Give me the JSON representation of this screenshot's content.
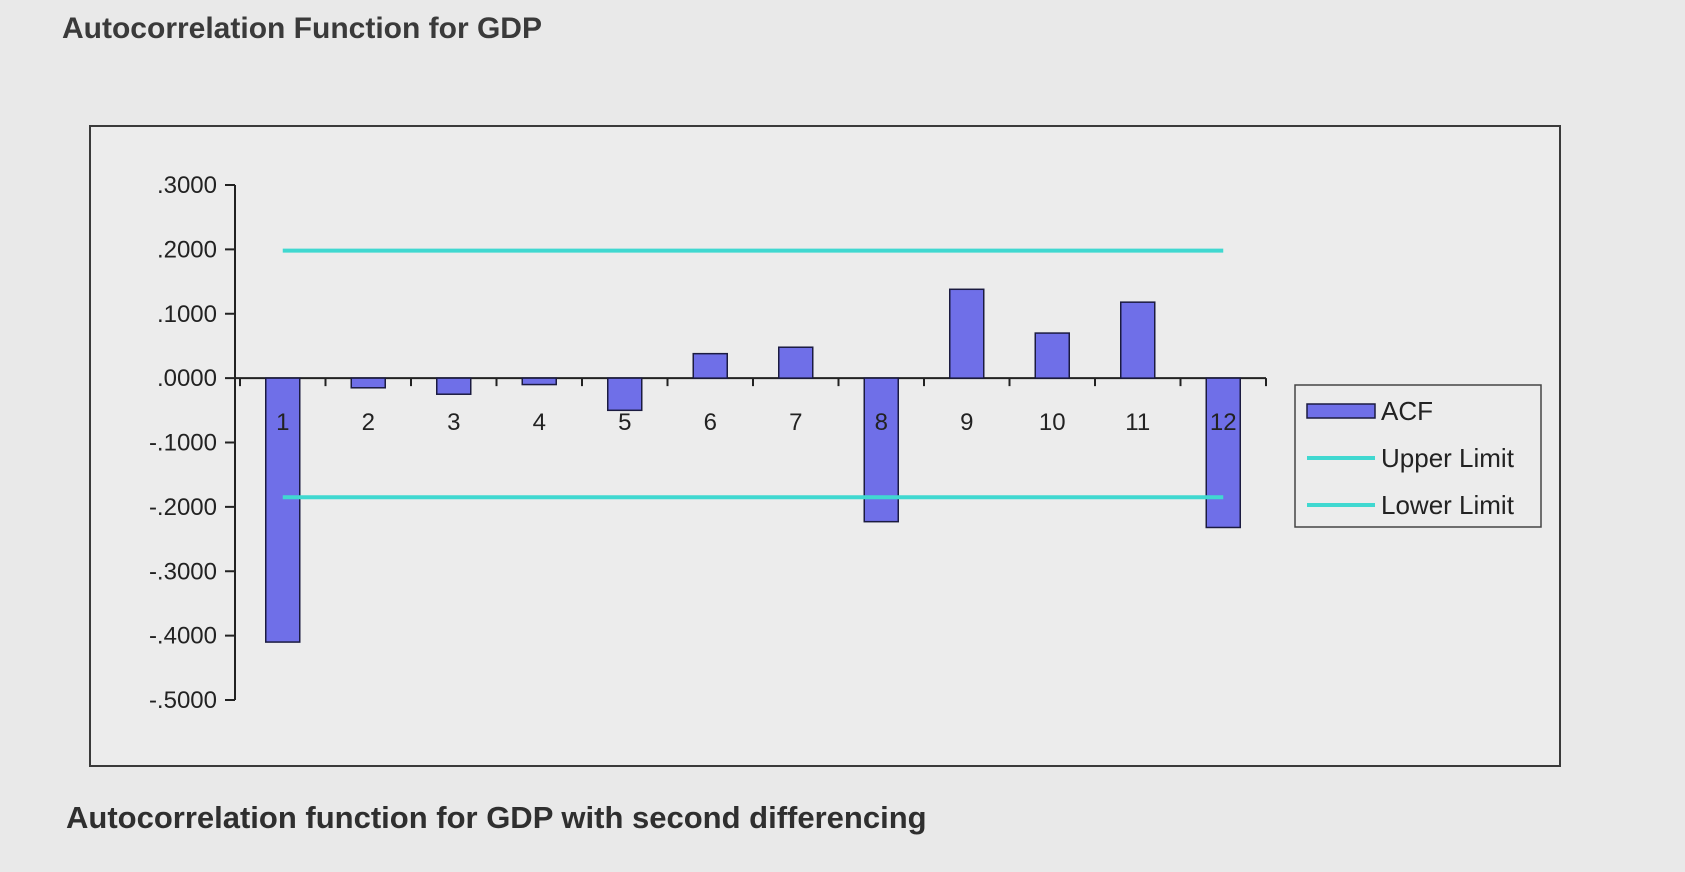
{
  "page_title": "Autocorrelation Function for GDP",
  "caption": "Autocorrelation function for GDP with second differencing",
  "chart_data": {
    "type": "bar",
    "categories": [
      "1",
      "2",
      "3",
      "4",
      "5",
      "6",
      "7",
      "8",
      "9",
      "10",
      "11",
      "12"
    ],
    "series": [
      {
        "name": "ACF",
        "values": [
          -0.41,
          -0.015,
          -0.025,
          -0.01,
          -0.05,
          0.038,
          0.048,
          -0.223,
          0.138,
          0.07,
          0.118,
          -0.232
        ],
        "color": "#6f6fe8"
      },
      {
        "name": "Upper Limit",
        "values": [
          0.198,
          0.198,
          0.198,
          0.198,
          0.198,
          0.198,
          0.198,
          0.198,
          0.198,
          0.198,
          0.198,
          0.198
        ],
        "color": "#40d8d0"
      },
      {
        "name": "Lower Limit",
        "values": [
          -0.185,
          -0.185,
          -0.185,
          -0.185,
          -0.185,
          -0.185,
          -0.185,
          -0.185,
          -0.185,
          -0.185,
          -0.185,
          -0.185
        ],
        "color": "#40d8d0"
      }
    ],
    "y_ticks": [
      ".3000",
      ".2000",
      ".1000",
      ".0000",
      "-.1000",
      "-.2000",
      "-.3000",
      "-.4000",
      "-.5000"
    ],
    "ylim": [
      -0.5,
      0.3
    ],
    "legend_position": "right",
    "grid": false
  }
}
